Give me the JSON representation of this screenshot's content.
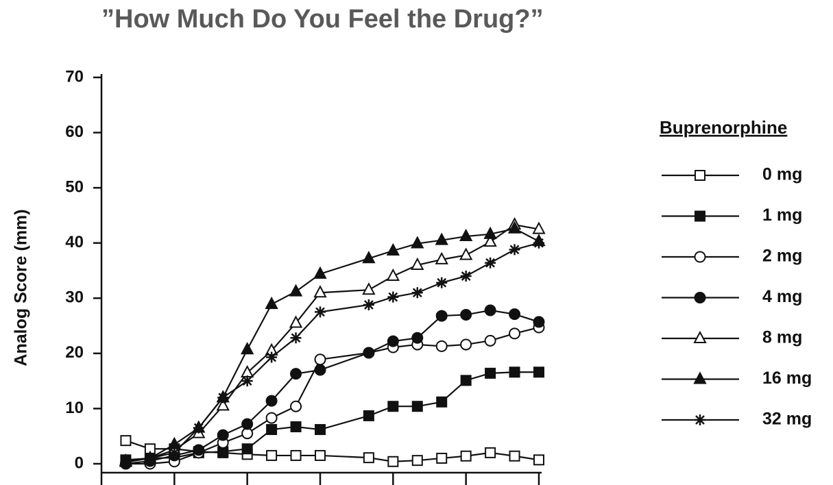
{
  "chart_data": {
    "type": "line",
    "title": "”How Much Do You Feel the Drug?”",
    "y_label": "Analog Score (mm)",
    "legend_title": "Buprenorphine",
    "legend": "right",
    "x": [
      1,
      2,
      3,
      4,
      5,
      6,
      7,
      8,
      9,
      11,
      12,
      13,
      14,
      15,
      16,
      17,
      18
    ],
    "xlim": [
      0,
      18
    ],
    "xticks": [
      0,
      3,
      6,
      9,
      12,
      15,
      18
    ],
    "ylim": [
      0,
      70
    ],
    "yticks": [
      0,
      10,
      20,
      30,
      40,
      50,
      60,
      70
    ],
    "series": [
      {
        "name": "0 mg",
        "color": "#111111",
        "marker": "square-open",
        "values": [
          4.2,
          2.7,
          2.7,
          2.2,
          2.0,
          1.7,
          1.5,
          1.5,
          1.5,
          1.1,
          0.4,
          0.6,
          1.0,
          1.4,
          2.0,
          1.4,
          0.7
        ]
      },
      {
        "name": "1 mg",
        "color": "#111111",
        "marker": "square-filled",
        "values": [
          0.7,
          1.0,
          1.1,
          2.0,
          2.2,
          2.7,
          6.2,
          6.7,
          6.2,
          8.7,
          10.4,
          10.4,
          11.2,
          15.1,
          16.4,
          16.6,
          16.6
        ]
      },
      {
        "name": "2 mg",
        "color": "#111111",
        "marker": "circle-open",
        "values": [
          0,
          0,
          0.4,
          2.0,
          3.8,
          5.5,
          8.3,
          10.4,
          18.9,
          20.1,
          21.1,
          21.6,
          21.3,
          21.6,
          22.3,
          23.6,
          24.7
        ]
      },
      {
        "name": "4 mg",
        "color": "#111111",
        "marker": "circle-filled",
        "values": [
          0,
          0.5,
          1.5,
          2.5,
          5.2,
          7.2,
          11.4,
          16.3,
          17.0,
          20.1,
          22.2,
          22.8,
          26.8,
          27.0,
          27.8,
          27.1,
          25.7
        ]
      },
      {
        "name": "8 mg",
        "color": "#111111",
        "marker": "triangle-open",
        "values": [
          0.5,
          1.0,
          2.5,
          5.5,
          10.5,
          16.5,
          20.5,
          25.5,
          31.0,
          31.5,
          34.0,
          36.0,
          37.0,
          37.8,
          40.2,
          43.3,
          42.5
        ]
      },
      {
        "name": "16 mg",
        "color": "#111111",
        "marker": "triangle-filled",
        "values": [
          0.3,
          1.0,
          3.5,
          6.5,
          12.0,
          20.7,
          28.9,
          31.2,
          34.4,
          37.2,
          38.6,
          39.9,
          40.5,
          41.2,
          41.6,
          42.6,
          40.3
        ]
      },
      {
        "name": "32 mg",
        "color": "#111111",
        "marker": "asterisk",
        "values": [
          0.3,
          1.0,
          2.0,
          6.5,
          12.0,
          15.0,
          19.3,
          22.8,
          27.5,
          28.8,
          30.2,
          31.0,
          32.8,
          34.0,
          36.4,
          38.8,
          40.0
        ]
      }
    ]
  }
}
